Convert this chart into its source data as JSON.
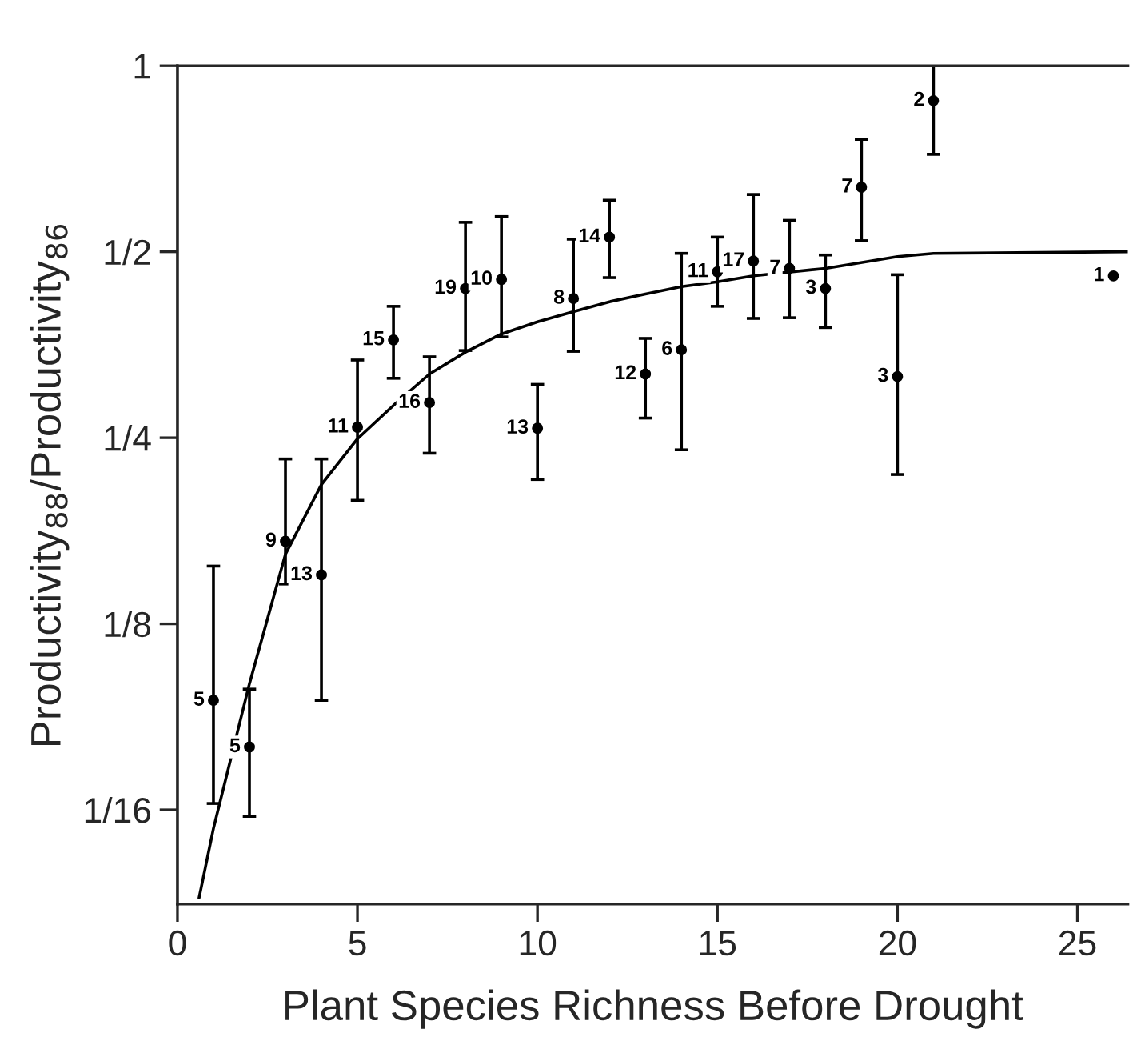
{
  "chart_data": {
    "type": "scatter",
    "xlabel": "Plant Species Richness Before Drought",
    "ylabel": "Productivity$_{88}$/Productivity$_{86}$",
    "log": "y",
    "xlim": [
      0,
      26.4
    ],
    "xticks": [
      0,
      5,
      10,
      15,
      20,
      25
    ],
    "ylim": [
      0.044,
      1
    ],
    "yticks": [
      {
        "value": 0.0625,
        "label": "1/16"
      },
      {
        "value": 0.125,
        "label": "1/8"
      },
      {
        "value": 0.25,
        "label": "1/4"
      },
      {
        "value": 0.5,
        "label": "1/2"
      },
      1
    ],
    "grid": false,
    "legend": false,
    "annotations": [
      {
        "text": "5",
        "x": 1,
        "y": 0.094
      },
      {
        "text": "5",
        "x": 2,
        "y": 0.079
      },
      {
        "text": "9",
        "x": 3,
        "y": 0.17
      },
      {
        "text": "13",
        "x": 4,
        "y": 0.15
      },
      {
        "text": "11",
        "x": 5,
        "y": 0.26
      },
      {
        "text": "15",
        "x": 6,
        "y": 0.36
      },
      {
        "text": "16",
        "x": 7,
        "y": 0.285
      },
      {
        "text": "19",
        "x": 8,
        "y": 0.436
      },
      {
        "text": "10",
        "x": 9,
        "y": 0.451
      },
      {
        "text": "13",
        "x": 10,
        "y": 0.259
      },
      {
        "text": "8",
        "x": 11,
        "y": 0.42
      },
      {
        "text": "14",
        "x": 12,
        "y": 0.528
      },
      {
        "text": "12",
        "x": 13,
        "y": 0.317
      },
      {
        "text": "6",
        "x": 14,
        "y": 0.347
      },
      {
        "text": "11",
        "x": 15,
        "y": 0.464
      },
      {
        "text": "17",
        "x": 16,
        "y": 0.483
      },
      {
        "text": "7",
        "x": 17,
        "y": 0.47
      },
      {
        "text": "3",
        "x": 18,
        "y": 0.436
      },
      {
        "text": "7",
        "x": 19,
        "y": 0.636
      },
      {
        "text": "3",
        "x": 20,
        "y": 0.314
      },
      {
        "text": "2",
        "x": 21,
        "y": 0.878
      },
      {
        "text": "1",
        "x": 26,
        "y": 0.457
      }
    ],
    "series": [
      {
        "color": "#000000",
        "marker": "circle",
        "x": [
          1,
          2,
          3,
          4,
          5,
          6,
          7,
          8,
          9,
          10,
          11,
          12,
          13,
          14,
          15,
          16,
          17,
          18,
          19,
          20,
          21,
          26
        ],
        "values": [
          0.094,
          0.079,
          0.17,
          0.15,
          0.26,
          0.36,
          0.285,
          0.436,
          0.451,
          0.259,
          0.42,
          0.528,
          0.317,
          0.347,
          0.464,
          0.483,
          0.47,
          0.436,
          0.636,
          0.314,
          0.878,
          0.457
        ],
        "errors": [
          [
            0.064,
            0.155
          ],
          [
            0.061,
            0.098
          ],
          [
            0.145,
            0.231
          ],
          [
            0.094,
            0.231
          ],
          [
            0.198,
            0.334
          ],
          [
            0.312,
            0.408
          ],
          [
            0.236,
            0.338
          ],
          [
            0.346,
            0.558
          ],
          [
            0.364,
            0.57
          ],
          [
            0.214,
            0.305
          ],
          [
            0.345,
            0.524
          ],
          [
            0.454,
            0.606
          ],
          [
            0.269,
            0.362
          ],
          [
            0.239,
            0.497
          ],
          [
            0.408,
            0.528
          ],
          [
            0.39,
            0.619
          ],
          [
            0.391,
            0.562
          ],
          [
            0.377,
            0.494
          ],
          [
            0.521,
            0.76
          ],
          [
            0.218,
            0.459
          ],
          [
            0.719,
            1.0
          ],
          null
        ]
      },
      {
        "type": "line",
        "color": "#000000",
        "marker": "none",
        "line_style": "solid",
        "x": [
          0.6,
          1,
          2,
          3,
          4,
          5,
          6,
          7,
          8,
          9,
          10,
          11,
          12,
          13,
          14,
          15,
          16,
          18,
          20,
          21,
          26.4
        ],
        "values": [
          0.045,
          0.0583,
          0.1,
          0.162,
          0.21,
          0.249,
          0.282,
          0.317,
          0.344,
          0.368,
          0.385,
          0.4,
          0.415,
          0.427,
          0.439,
          0.447,
          0.457,
          0.47,
          0.491,
          0.497,
          0.5
        ]
      }
    ]
  }
}
